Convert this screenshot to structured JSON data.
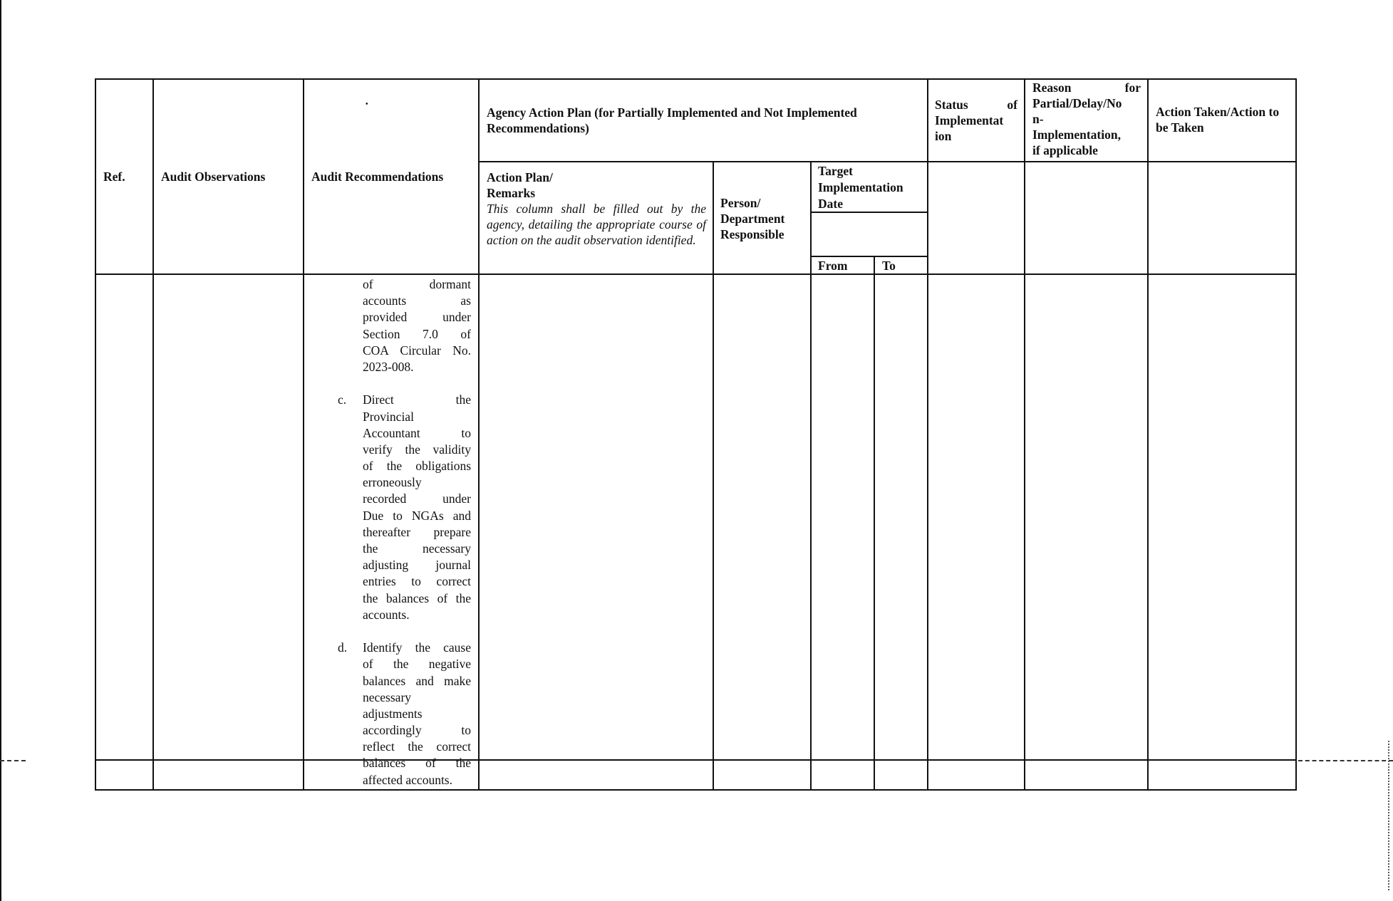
{
  "header": {
    "ref": "Ref.",
    "observations": "Audit Observations",
    "recommendations": "Audit Recommendations",
    "recommendations_mark": "•",
    "agency_plan": "Agency Action Plan (for Partially Implemented and Not Implemented Recommendations)",
    "action_plan_title": "Action Plan/",
    "action_plan_remarks": "Remarks",
    "action_plan_note": "This column shall be filled out by the agency, detailing the appropriate course of action on the audit observation identified.",
    "person": "Person/ Department Responsible",
    "target": "Target Implementation Date",
    "from": "From",
    "to": "To",
    "status": "Status of Implementation",
    "status_display": "Status of Implementat ion",
    "reason": "Reason for Partial/Delay/Non-Implementation, if applicable",
    "reason_lines": [
      "Reason for",
      "Partial/Delay/No",
      "n-",
      "Implementation,",
      "if applicable"
    ],
    "action_taken": "Action Taken/Action to be Taken"
  },
  "recommendations": [
    {
      "marker": "",
      "lines": [
        "of dormant",
        "accounts as",
        "provided under",
        "Section 7.0 of",
        "COA Circular No.",
        "2023-008."
      ]
    },
    {
      "marker": "c.",
      "lines": [
        "Direct the",
        "Provincial",
        "Accountant to",
        "verify the validity",
        "of the obligations",
        "erroneously",
        "recorded under",
        "Due to NGAs and",
        "thereafter prepare",
        "the necessary",
        "adjusting journal",
        "entries to correct",
        "the balances of the",
        "accounts."
      ]
    },
    {
      "marker": "d.",
      "lines": [
        "Identify the cause",
        "of the negative",
        "balances and make",
        "necessary",
        "adjustments",
        "accordingly to",
        "reflect the correct",
        "balances of the",
        "affected accounts."
      ]
    }
  ]
}
